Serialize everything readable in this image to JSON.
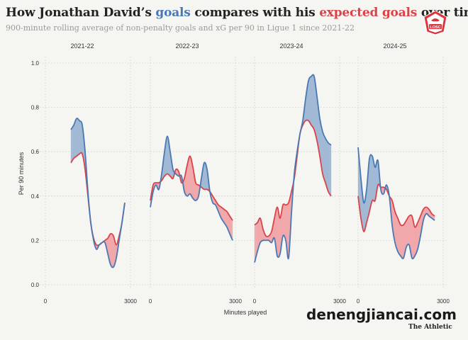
{
  "header": {
    "title_prefix": "How Jonathan David’s ",
    "title_goals": "goals",
    "title_middle": " compares with his ",
    "title_xg": "expected goals",
    "title_suffix": " over time",
    "subtitle": "900-minute rolling average of non-penalty goals and xG per 90 in Ligue 1 since 2021-22"
  },
  "logo": {
    "text": "LOSC",
    "icon": "club-crest-icon"
  },
  "watermark": "denengjiancai.com",
  "credit": "The Athletic",
  "colors": {
    "goals": "#4a78b4",
    "xg": "#d8444a",
    "goals_fill": "#a3b9d4",
    "xg_fill": "#f1a9ab"
  },
  "chart_data": {
    "type": "line",
    "title": "How Jonathan David’s goals compares with his expected goals over time",
    "xlabel": "Minutes played",
    "ylabel": "Per 90 minutes",
    "xlim": [
      0,
      3000
    ],
    "xticks": [
      "0",
      "3000"
    ],
    "ylim": [
      0,
      1.0
    ],
    "yticks": [
      "0.0",
      "0.2",
      "0.4",
      "0.6",
      "0.8",
      "1.0"
    ],
    "grid": true,
    "panels": [
      {
        "season": "2021-22",
        "x": [
          900,
          1000,
          1100,
          1200,
          1300,
          1400,
          1500,
          1600,
          1700,
          1800,
          1900,
          2000,
          2100,
          2200,
          2300,
          2400,
          2500,
          2600,
          2700,
          2800
        ],
        "series": [
          {
            "name": "goals",
            "values": [
              0.7,
              0.72,
              0.75,
              0.74,
              0.72,
              0.6,
              0.42,
              0.28,
              0.2,
              0.16,
              0.18,
              0.19,
              0.19,
              0.14,
              0.09,
              0.08,
              0.12,
              0.2,
              0.28,
              0.37
            ]
          },
          {
            "name": "xG",
            "values": [
              0.55,
              0.57,
              0.58,
              0.59,
              0.59,
              0.52,
              0.4,
              0.28,
              0.21,
              0.18,
              0.18,
              0.19,
              0.2,
              0.21,
              0.23,
              0.22,
              0.18,
              0.22,
              0.28,
              0.37
            ]
          }
        ]
      },
      {
        "season": "2022-23",
        "x": [
          0,
          100,
          200,
          300,
          400,
          500,
          600,
          700,
          800,
          900,
          1000,
          1100,
          1200,
          1300,
          1400,
          1500,
          1600,
          1700,
          1800,
          1900,
          2000,
          2100,
          2200,
          2300,
          2400,
          2500,
          2600,
          2700,
          2800,
          2900
        ],
        "series": [
          {
            "name": "goals",
            "values": [
              0.35,
              0.42,
              0.45,
              0.43,
              0.5,
              0.6,
              0.67,
              0.6,
              0.52,
              0.5,
              0.49,
              0.49,
              0.42,
              0.4,
              0.41,
              0.39,
              0.38,
              0.4,
              0.48,
              0.55,
              0.52,
              0.42,
              0.37,
              0.36,
              0.33,
              0.3,
              0.28,
              0.26,
              0.23,
              0.2
            ]
          },
          {
            "name": "xG",
            "values": [
              0.38,
              0.45,
              0.46,
              0.46,
              0.47,
              0.49,
              0.5,
              0.49,
              0.48,
              0.52,
              0.51,
              0.46,
              0.48,
              0.54,
              0.58,
              0.53,
              0.46,
              0.45,
              0.44,
              0.43,
              0.43,
              0.42,
              0.4,
              0.38,
              0.36,
              0.35,
              0.34,
              0.33,
              0.31,
              0.29
            ]
          }
        ]
      },
      {
        "season": "2023-24",
        "x": [
          0,
          100,
          200,
          300,
          400,
          500,
          600,
          700,
          800,
          900,
          1000,
          1100,
          1200,
          1300,
          1400,
          1500,
          1600,
          1700,
          1800,
          1900,
          2000,
          2100,
          2200,
          2300,
          2400,
          2500,
          2600,
          2700
        ],
        "series": [
          {
            "name": "goals",
            "values": [
              0.1,
              0.15,
              0.19,
              0.2,
              0.2,
              0.2,
              0.19,
              0.21,
              0.13,
              0.14,
              0.22,
              0.2,
              0.12,
              0.32,
              0.5,
              0.6,
              0.68,
              0.74,
              0.84,
              0.92,
              0.94,
              0.94,
              0.85,
              0.75,
              0.69,
              0.66,
              0.64,
              0.63
            ]
          },
          {
            "name": "xG",
            "values": [
              0.27,
              0.28,
              0.3,
              0.25,
              0.22,
              0.22,
              0.24,
              0.3,
              0.35,
              0.3,
              0.36,
              0.36,
              0.37,
              0.42,
              0.48,
              0.58,
              0.68,
              0.72,
              0.74,
              0.74,
              0.72,
              0.7,
              0.65,
              0.58,
              0.5,
              0.46,
              0.42,
              0.4
            ]
          }
        ]
      },
      {
        "season": "2024-25",
        "x": [
          0,
          100,
          200,
          300,
          400,
          500,
          600,
          700,
          800,
          900,
          1000,
          1100,
          1200,
          1300,
          1400,
          1500,
          1600,
          1700,
          1800,
          1900,
          2000,
          2100,
          2200,
          2300,
          2400,
          2500,
          2600,
          2700
        ],
        "series": [
          {
            "name": "goals",
            "values": [
              0.62,
              0.48,
              0.37,
              0.43,
              0.57,
              0.58,
              0.53,
              0.56,
              0.43,
              0.41,
              0.45,
              0.4,
              0.27,
              0.19,
              0.15,
              0.13,
              0.12,
              0.17,
              0.18,
              0.12,
              0.13,
              0.16,
              0.22,
              0.29,
              0.32,
              0.31,
              0.3,
              0.29
            ]
          },
          {
            "name": "xG",
            "values": [
              0.4,
              0.3,
              0.24,
              0.28,
              0.33,
              0.38,
              0.38,
              0.45,
              0.44,
              0.44,
              0.43,
              0.4,
              0.38,
              0.33,
              0.3,
              0.27,
              0.27,
              0.29,
              0.31,
              0.31,
              0.26,
              0.28,
              0.31,
              0.34,
              0.35,
              0.34,
              0.32,
              0.31
            ]
          }
        ]
      }
    ]
  }
}
